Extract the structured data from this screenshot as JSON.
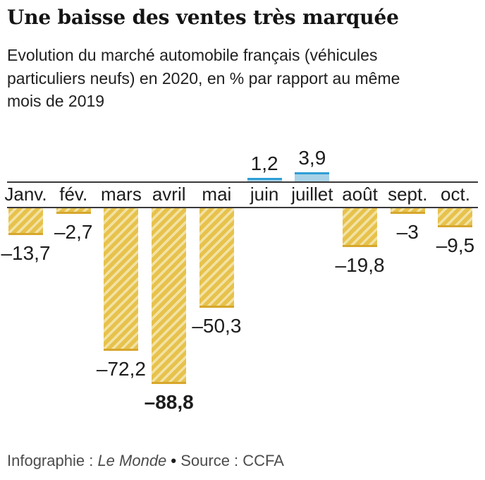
{
  "header": {
    "title": "Une baisse des ventes très marquée",
    "subtitle": "Evolution du marché automobile français (véhicules\nparticuliers neufs)  en 2020, en % par rapport au même\nmois de 2019"
  },
  "footer": {
    "credit_prefix": "Infographie : ",
    "credit_brand": "Le Monde",
    "separator": " • ",
    "source_text": "Source : CCFA"
  },
  "colors": {
    "bar_negative_fill": "#e7c24c",
    "bar_negative_stripe": "#f2e2a4",
    "bar_negative_edge": "#d7a72c",
    "bar_positive_fill": "#a9d2e7",
    "bar_positive_edge": "#2e9ed6",
    "axis_line": "#3a3a3a",
    "text_dark": "#1d1d1d",
    "footer_text": "#4c4c4c"
  },
  "chart_data": {
    "type": "bar",
    "title": "Une baisse des ventes très marquée",
    "subtitle": "Evolution du marché automobile français (véhicules particuliers neufs) en 2020, en % par rapport au même mois de 2019",
    "categories": [
      "Janv.",
      "fév.",
      "mars",
      "avril",
      "mai",
      "juin",
      "juillet",
      "août",
      "sept.",
      "oct."
    ],
    "values": [
      -13.7,
      -2.7,
      -72.2,
      -88.8,
      -50.3,
      1.2,
      3.9,
      -19.8,
      -3,
      -9.5
    ],
    "value_labels": [
      "–13,7",
      "–2,7",
      "–72,2",
      "–88,8",
      "–50,3",
      "1,2",
      "3,9",
      "–19,8",
      "–3",
      "–9,5"
    ],
    "bold_label_index": 3,
    "xlabel": "",
    "ylabel": "% par rapport au même mois de 2019",
    "ylim": [
      -90,
      5
    ],
    "grid": false,
    "legend": false,
    "positive_color": "#a9d2e7",
    "negative_color": "#e7c24c",
    "source": "CCFA"
  }
}
